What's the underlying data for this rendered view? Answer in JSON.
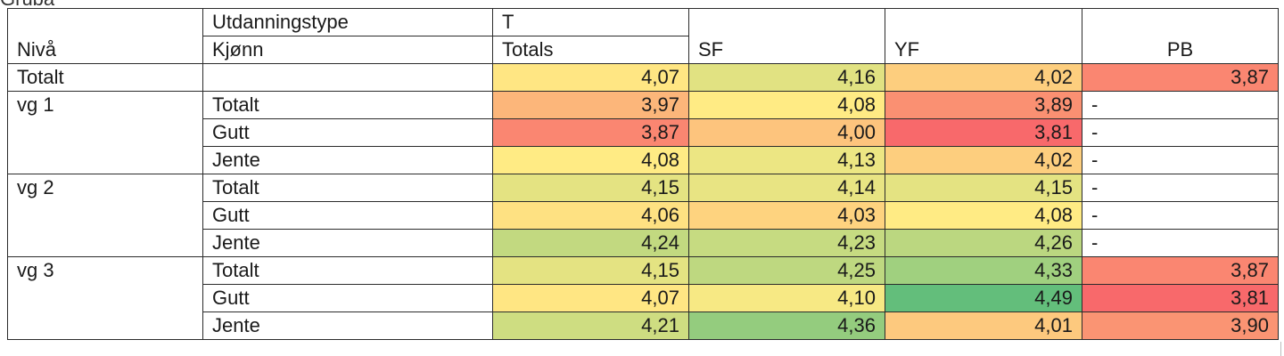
{
  "fragment": "Gruba",
  "header": {
    "utdanningstype_label": "Utdanningstype",
    "t_label": "T",
    "niva_label": "Nivå",
    "kjonn_label": "Kjønn",
    "totals_label": "Totals",
    "sf_label": "SF",
    "yf_label": "YF",
    "pb_label": "PB"
  },
  "rows": [
    {
      "niva": "Totalt",
      "kjonn": "",
      "t": "4,07",
      "sf": "4,16",
      "yf": "4,02",
      "pb": "3,87"
    },
    {
      "niva": "vg 1",
      "kjonn": "Totalt",
      "t": "3,97",
      "sf": "4,08",
      "yf": "3,89",
      "pb": "-"
    },
    {
      "niva": "",
      "kjonn": "Gutt",
      "t": "3,87",
      "sf": "4,00",
      "yf": "3,81",
      "pb": "-"
    },
    {
      "niva": "",
      "kjonn": "Jente",
      "t": "4,08",
      "sf": "4,13",
      "yf": "4,02",
      "pb": "-"
    },
    {
      "niva": "vg 2",
      "kjonn": "Totalt",
      "t": "4,15",
      "sf": "4,14",
      "yf": "4,15",
      "pb": "-"
    },
    {
      "niva": "",
      "kjonn": "Gutt",
      "t": "4,06",
      "sf": "4,03",
      "yf": "4,08",
      "pb": "-"
    },
    {
      "niva": "",
      "kjonn": "Jente",
      "t": "4,24",
      "sf": "4,23",
      "yf": "4,26",
      "pb": "-"
    },
    {
      "niva": "vg 3",
      "kjonn": "Totalt",
      "t": "4,15",
      "sf": "4,25",
      "yf": "4,33",
      "pb": "3,87"
    },
    {
      "niva": "",
      "kjonn": "Gutt",
      "t": "4,07",
      "sf": "4,10",
      "yf": "4,49",
      "pb": "3,81"
    },
    {
      "niva": "",
      "kjonn": "Jente",
      "t": "4,21",
      "sf": "4,36",
      "yf": "4,01",
      "pb": "3,90"
    }
  ],
  "heat_colors": {
    "low": "#f8696b",
    "mid": "#ffeb84",
    "high": "#63be7b"
  }
}
